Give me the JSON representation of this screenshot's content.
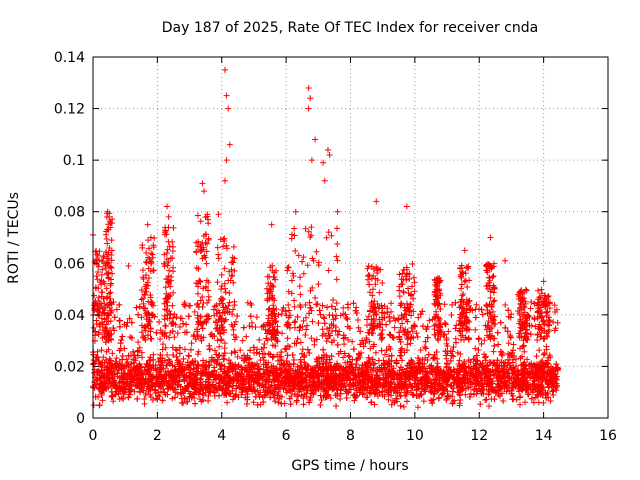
{
  "chart_data": {
    "type": "scatter",
    "title": "Day 187 of 2025, Rate Of TEC Index for receiver cnda",
    "xlabel": "GPS time / hours",
    "ylabel": "ROTI / TECUs",
    "xlim": [
      0,
      16
    ],
    "ylim": [
      0,
      0.14
    ],
    "x_ticks": [
      "0",
      "2",
      "4",
      "6",
      "8",
      "10",
      "12",
      "14",
      "16"
    ],
    "y_ticks": [
      "0",
      "0.02",
      "0.04",
      "0.06",
      "0.08",
      "0.1",
      "0.12",
      "0.14"
    ],
    "grid": true,
    "marker": "+",
    "color": "#ff0000",
    "notable_points": [
      {
        "x": 0.0,
        "y": 0.071
      },
      {
        "x": 0.1,
        "y": 0.061
      },
      {
        "x": 0.45,
        "y": 0.08
      },
      {
        "x": 0.5,
        "y": 0.078
      },
      {
        "x": 1.1,
        "y": 0.059
      },
      {
        "x": 1.7,
        "y": 0.075
      },
      {
        "x": 2.3,
        "y": 0.082
      },
      {
        "x": 2.35,
        "y": 0.078
      },
      {
        "x": 3.4,
        "y": 0.091
      },
      {
        "x": 3.45,
        "y": 0.088
      },
      {
        "x": 3.9,
        "y": 0.079
      },
      {
        "x": 4.1,
        "y": 0.135
      },
      {
        "x": 4.15,
        "y": 0.125
      },
      {
        "x": 4.2,
        "y": 0.12
      },
      {
        "x": 4.25,
        "y": 0.106
      },
      {
        "x": 4.15,
        "y": 0.1
      },
      {
        "x": 4.1,
        "y": 0.092
      },
      {
        "x": 5.55,
        "y": 0.075
      },
      {
        "x": 6.3,
        "y": 0.08
      },
      {
        "x": 6.7,
        "y": 0.128
      },
      {
        "x": 6.75,
        "y": 0.124
      },
      {
        "x": 6.7,
        "y": 0.12
      },
      {
        "x": 6.9,
        "y": 0.108
      },
      {
        "x": 6.8,
        "y": 0.1
      },
      {
        "x": 7.15,
        "y": 0.099
      },
      {
        "x": 7.3,
        "y": 0.104
      },
      {
        "x": 7.35,
        "y": 0.102
      },
      {
        "x": 7.2,
        "y": 0.092
      },
      {
        "x": 7.6,
        "y": 0.08
      },
      {
        "x": 8.8,
        "y": 0.084
      },
      {
        "x": 9.75,
        "y": 0.082
      },
      {
        "x": 11.55,
        "y": 0.065
      },
      {
        "x": 12.35,
        "y": 0.07
      },
      {
        "x": 12.8,
        "y": 0.061
      },
      {
        "x": 14.0,
        "y": 0.053
      }
    ],
    "bulk_range": {
      "x": [
        0,
        14.45
      ],
      "y": [
        0.003,
        0.045
      ],
      "typical": 0.015
    }
  }
}
